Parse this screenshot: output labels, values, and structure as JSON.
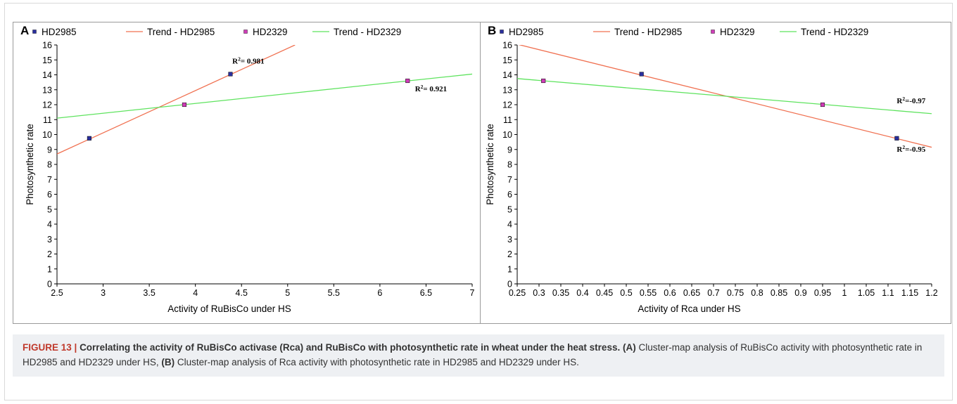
{
  "caption": {
    "figure_label": "FIGURE 13 |",
    "title": "Correlating the activity of RuBisCo activase (Rca) and RuBisCo with photosynthetic rate in wheat under the heat stress.",
    "part_a_tag": "(A)",
    "part_a_text": "Cluster-map analysis of RuBisCo activity with photosynthetic rate in HD2985 and HD2329 under HS,",
    "part_b_tag": "(B)",
    "part_b_text": "Cluster-map analysis of Rca activity with photosynthetic rate in HD2985 and HD2329 under HS."
  },
  "colors": {
    "hd2985_marker": "#2a2f9e",
    "hd2329_marker": "#d03cb8",
    "trend_hd2985": "#f07050",
    "trend_hd2329": "#5ee35e",
    "axis": "#000000",
    "frame": "#9a9a9a"
  },
  "chart_data": [
    {
      "type": "scatter",
      "panel_label": "A",
      "xlabel": "Activity of RuBisCo under HS",
      "ylabel": "Photosynthetic rate",
      "xlim": [
        2.5,
        7
      ],
      "ylim": [
        0,
        16
      ],
      "x_ticks": [
        "2.5",
        "3",
        "3.5",
        "4",
        "4.5",
        "5",
        "5.5",
        "6",
        "6.5",
        "7"
      ],
      "y_ticks": [
        "0",
        "1",
        "2",
        "3",
        "4",
        "5",
        "6",
        "7",
        "8",
        "9",
        "10",
        "11",
        "12",
        "13",
        "14",
        "15",
        "16"
      ],
      "legend": [
        "HD2985",
        "Trend - HD2985",
        "HD2329",
        "Trend - HD2329"
      ],
      "legend_position": "top",
      "series": [
        {
          "name": "HD2985",
          "kind": "points",
          "points": [
            [
              2.85,
              9.75
            ],
            [
              4.38,
              14.05
            ]
          ]
        },
        {
          "name": "Trend - HD2985",
          "kind": "line",
          "line": [
            [
              2.5,
              8.7
            ],
            [
              5.08,
              16
            ]
          ]
        },
        {
          "name": "HD2329",
          "kind": "points",
          "points": [
            [
              3.88,
              12.0
            ],
            [
              6.3,
              13.6
            ]
          ]
        },
        {
          "name": "Trend - HD2329",
          "kind": "line",
          "line": [
            [
              2.5,
              11.1
            ],
            [
              7.0,
              14.05
            ]
          ]
        }
      ],
      "annotations": [
        {
          "text_main": "R",
          "text_sup": "2",
          "text_tail": "= 0.981",
          "x": 4.4,
          "y": 14.75
        },
        {
          "text_main": "R",
          "text_sup": "2",
          "text_tail": "= 0.921",
          "x": 6.38,
          "y": 12.9
        }
      ]
    },
    {
      "type": "scatter",
      "panel_label": "B",
      "xlabel": "Activity of Rca under HS",
      "ylabel": "Photosynthetic rate",
      "xlim": [
        0.25,
        1.2
      ],
      "ylim": [
        0,
        16
      ],
      "x_ticks": [
        "0.25",
        "0.3",
        "0.35",
        "0.4",
        "0.45",
        "0.5",
        "0.55",
        "0.6",
        "0.65",
        "0.7",
        "0.75",
        "0.8",
        "0.85",
        "0.9",
        "0.95",
        "1",
        "1.05",
        "1.1",
        "1.15",
        "1.2"
      ],
      "y_ticks": [
        "0",
        "1",
        "2",
        "3",
        "4",
        "5",
        "6",
        "7",
        "8",
        "9",
        "10",
        "11",
        "12",
        "13",
        "14",
        "15",
        "16"
      ],
      "legend": [
        "HD2985",
        "Trend - HD2985",
        "HD2329",
        "Trend - HD2329"
      ],
      "legend_position": "top",
      "series": [
        {
          "name": "HD2985",
          "kind": "points",
          "points": [
            [
              0.535,
              14.05
            ],
            [
              1.12,
              9.75
            ]
          ]
        },
        {
          "name": "Trend - HD2985",
          "kind": "line",
          "line": [
            [
              0.25,
              16.05
            ],
            [
              1.2,
              9.15
            ]
          ]
        },
        {
          "name": "HD2329",
          "kind": "points",
          "points": [
            [
              0.31,
              13.6
            ],
            [
              0.95,
              12.0
            ]
          ]
        },
        {
          "name": "Trend - HD2329",
          "kind": "line",
          "line": [
            [
              0.25,
              13.75
            ],
            [
              1.2,
              11.4
            ]
          ]
        }
      ],
      "annotations": [
        {
          "text_main": "R",
          "text_sup": "2",
          "text_tail": "=-0.97",
          "x": 1.12,
          "y": 12.1
        },
        {
          "text_main": "R",
          "text_sup": "2",
          "text_tail": "=-0.95",
          "x": 1.12,
          "y": 8.85
        }
      ]
    }
  ]
}
